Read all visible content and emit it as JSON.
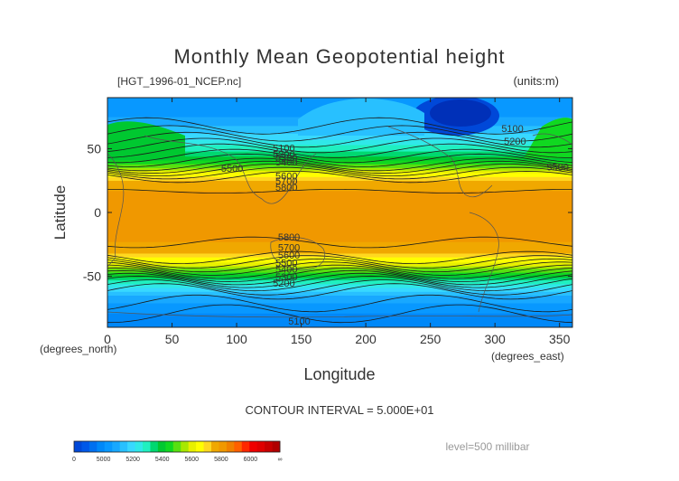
{
  "chart_data": {
    "type": "heatmap",
    "subtype": "filled-contour map",
    "title": "Monthly Mean Geopotential height",
    "file_label": "[HGT_1996-01_NCEP.nc]",
    "units_label": "(units:m)",
    "xlabel": "Longitude",
    "ylabel": "Latitude",
    "x_unit_label": "(degrees_east)",
    "y_unit_label": "(degrees_north)",
    "xlim": [
      0,
      360
    ],
    "ylim": [
      -90,
      90
    ],
    "x_ticks": [
      0,
      50,
      100,
      150,
      200,
      250,
      300,
      350
    ],
    "y_ticks": [
      -50,
      0,
      50
    ],
    "contour_interval_text": "CONTOUR INTERVAL = 5.000E+01",
    "contour_interval": 50,
    "level_text": "level=500 millibar",
    "colorbar": {
      "tick_labels": [
        "0",
        "5000",
        "5200",
        "5400",
        "5600",
        "5800",
        "6000",
        "∞"
      ],
      "bin_edges": [
        0,
        4950,
        5000,
        5050,
        5100,
        5150,
        5200,
        5250,
        5300,
        5350,
        5400,
        5450,
        5500,
        5550,
        5600,
        5650,
        5700,
        5750,
        5800,
        5850,
        5900,
        5950,
        6000,
        6050,
        6100,
        6150,
        6200,
        6250
      ],
      "colors": [
        "#0048d8",
        "#0058e8",
        "#0070f0",
        "#0088f8",
        "#0898ff",
        "#18a8ff",
        "#28c0ff",
        "#38d8ff",
        "#30e8e8",
        "#20f0c0",
        "#00d870",
        "#00c830",
        "#10d820",
        "#58e010",
        "#a8e800",
        "#e8f000",
        "#ffff00",
        "#ffd820",
        "#f0a800",
        "#f09800",
        "#f08000",
        "#ff6000",
        "#ff2800",
        "#f00000",
        "#e00000",
        "#c80000",
        "#b00000"
      ]
    },
    "contour_labels": [
      {
        "text": "5100",
        "lon": 128,
        "lat": 48
      },
      {
        "text": "5200",
        "lon": 128,
        "lat": 43
      },
      {
        "text": "5300",
        "lon": 130,
        "lat": 40
      },
      {
        "text": "5400",
        "lon": 130,
        "lat": 37
      },
      {
        "text": "5500",
        "lon": 88,
        "lat": 32
      },
      {
        "text": "5600",
        "lon": 130,
        "lat": 26
      },
      {
        "text": "5700",
        "lon": 130,
        "lat": 22
      },
      {
        "text": "5800",
        "lon": 130,
        "lat": 17
      },
      {
        "text": "5100",
        "lon": 305,
        "lat": 63
      },
      {
        "text": "5200",
        "lon": 307,
        "lat": 53
      },
      {
        "text": "5500",
        "lon": 340,
        "lat": 33
      },
      {
        "text": "5800",
        "lon": 132,
        "lat": -22
      },
      {
        "text": "5700",
        "lon": 132,
        "lat": -30
      },
      {
        "text": "5600",
        "lon": 132,
        "lat": -36
      },
      {
        "text": "5500",
        "lon": 130,
        "lat": -42
      },
      {
        "text": "5400",
        "lon": 130,
        "lat": -47
      },
      {
        "text": "5300",
        "lon": 130,
        "lat": -53
      },
      {
        "text": "5200",
        "lon": 128,
        "lat": -58
      },
      {
        "text": "5100",
        "lon": 140,
        "lat": -88
      }
    ],
    "zonal_profile": [
      {
        "lat": -90,
        "value": 5050
      },
      {
        "lat": -75,
        "value": 5120
      },
      {
        "lat": -65,
        "value": 5200
      },
      {
        "lat": -55,
        "value": 5360
      },
      {
        "lat": -48,
        "value": 5520
      },
      {
        "lat": -40,
        "value": 5680
      },
      {
        "lat": -32,
        "value": 5800
      },
      {
        "lat": -20,
        "value": 5870
      },
      {
        "lat": 0,
        "value": 5880
      },
      {
        "lat": 15,
        "value": 5860
      },
      {
        "lat": 25,
        "value": 5800
      },
      {
        "lat": 32,
        "value": 5680
      },
      {
        "lat": 38,
        "value": 5540
      },
      {
        "lat": 45,
        "value": 5440
      },
      {
        "lat": 55,
        "value": 5320
      },
      {
        "lat": 65,
        "value": 5220
      },
      {
        "lat": 75,
        "value": 5150
      },
      {
        "lat": 90,
        "value": 5120
      }
    ]
  }
}
